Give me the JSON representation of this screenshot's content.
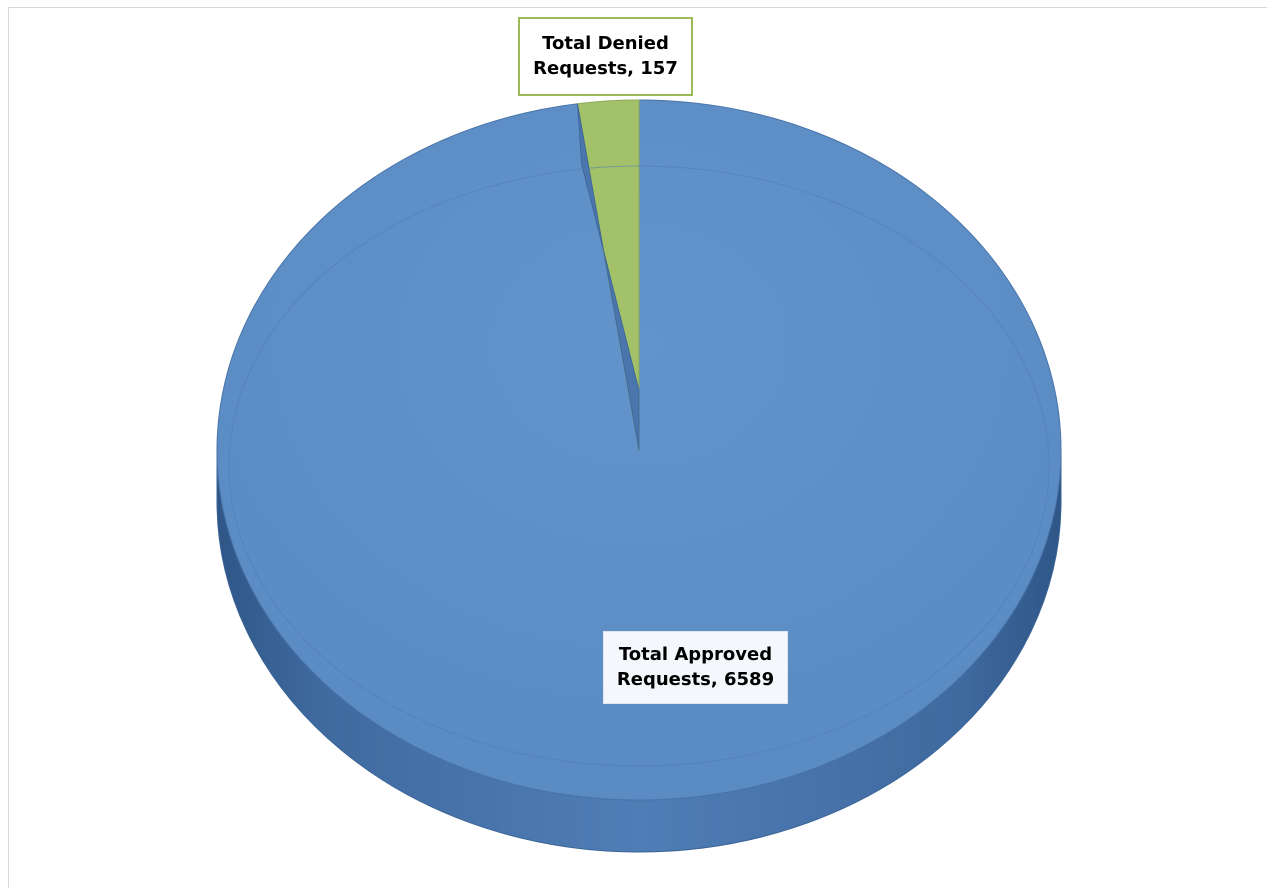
{
  "chart_data": {
    "type": "pie",
    "style": "3d",
    "title": "",
    "slices": [
      {
        "label": "Total Approved Requests",
        "value": 6589,
        "color": "#5b8bc4"
      },
      {
        "label": "Total Denied Requests",
        "value": 157,
        "color": "#a2c168"
      }
    ],
    "data_labels": [
      {
        "line1": "Total Denied",
        "line2": "Requests, 157"
      },
      {
        "line1": "Total Approved",
        "line2": "Requests, 6589"
      }
    ],
    "legend": "none"
  }
}
